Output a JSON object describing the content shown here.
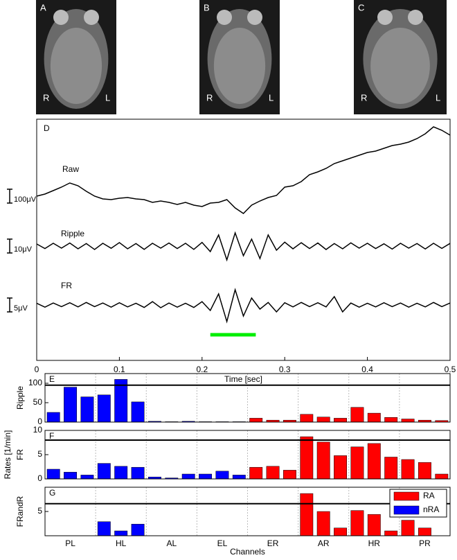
{
  "images": [
    {
      "label": "A",
      "left": "R",
      "right": "L"
    },
    {
      "label": "B",
      "left": "R",
      "right": "L"
    },
    {
      "label": "C",
      "left": "R",
      "right": "L"
    }
  ],
  "chart_data": [
    {
      "type": "traces",
      "label": "D",
      "xlabel": "Time [sec]",
      "xlim": [
        0,
        0.5
      ],
      "xticks": [
        0,
        0.1,
        0.2,
        0.3,
        0.4,
        0.5
      ],
      "highlight": {
        "range": [
          0.21,
          0.265
        ],
        "color": "#00ee00"
      },
      "x": [
        0,
        0.01,
        0.02,
        0.03,
        0.04,
        0.05,
        0.06,
        0.07,
        0.08,
        0.09,
        0.1,
        0.11,
        0.12,
        0.13,
        0.14,
        0.15,
        0.16,
        0.17,
        0.18,
        0.19,
        0.2,
        0.21,
        0.22,
        0.23,
        0.24,
        0.25,
        0.26,
        0.27,
        0.28,
        0.29,
        0.3,
        0.31,
        0.32,
        0.33,
        0.34,
        0.35,
        0.36,
        0.37,
        0.38,
        0.39,
        0.4,
        0.41,
        0.42,
        0.43,
        0.44,
        0.45,
        0.46,
        0.47,
        0.48,
        0.49,
        0.5
      ],
      "series": [
        {
          "name": "Raw",
          "color": "#000000",
          "scale_bar": {
            "value": 100,
            "label": "100μV"
          },
          "values": [
            0,
            15,
            40,
            65,
            95,
            75,
            35,
            0,
            -20,
            -25,
            -15,
            -10,
            -20,
            -25,
            -45,
            -35,
            -45,
            -60,
            -45,
            -65,
            -75,
            -50,
            -45,
            -25,
            -85,
            -125,
            -65,
            -35,
            -10,
            5,
            65,
            75,
            105,
            155,
            175,
            200,
            235,
            255,
            275,
            295,
            315,
            325,
            345,
            365,
            375,
            390,
            415,
            450,
            500,
            475,
            440
          ]
        },
        {
          "name": "Ripple",
          "color": "#000000",
          "scale_bar": {
            "value": 10,
            "label": "10μV"
          },
          "values": [
            1.5,
            -1.8,
            2,
            -1.5,
            2.2,
            -2,
            1.8,
            -2.5,
            2,
            -1.6,
            2.5,
            -2,
            1.8,
            -2.4,
            2,
            -1.5,
            2.2,
            -1.8,
            2,
            -2.4,
            2.6,
            -4,
            8,
            -10,
            9.5,
            -7,
            5,
            -9,
            8,
            -3,
            2.8,
            -2,
            2.4,
            -1.8,
            2.2,
            -2.5,
            1.8,
            -2,
            2.3,
            -1.5,
            2,
            -1.8,
            1.6,
            -2.2,
            2,
            -1.5,
            1.8,
            -2.1,
            2,
            -1.7,
            1.9
          ]
        },
        {
          "name": "FR",
          "color": "#000000",
          "scale_bar": {
            "value": 5,
            "label": "5μV"
          },
          "values": [
            0.6,
            -0.8,
            0.7,
            -0.6,
            0.8,
            -0.7,
            0.9,
            -0.6,
            0.7,
            -0.8,
            0.8,
            -0.7,
            0.6,
            -0.9,
            1.2,
            -1,
            0.7,
            -0.8,
            0.6,
            -0.9,
            1.2,
            -2,
            4,
            -6,
            5.5,
            -4,
            2.5,
            -1.5,
            0.9,
            -2.5,
            0.8,
            -0.7,
            0.9,
            -0.6,
            0.8,
            -0.7,
            3,
            -2.5,
            0.7,
            -0.8,
            0.6,
            -0.7,
            0.8,
            -0.6,
            0.7,
            -0.8,
            0.6,
            -0.7,
            0.9,
            -0.6,
            0.7
          ]
        }
      ]
    },
    {
      "type": "bar",
      "label": "E",
      "ylabel": "Ripple",
      "ylim": [
        0,
        125
      ],
      "yticks": [
        0,
        50,
        100
      ],
      "threshold": 95,
      "categories": [
        null,
        "PL",
        null,
        null,
        "HL",
        null,
        null,
        "AL",
        null,
        null,
        "EL",
        null,
        null,
        "ER",
        null,
        null,
        "AR",
        null,
        null,
        "HR",
        null,
        null,
        "PR",
        null
      ],
      "series": [
        {
          "color": "#0000ff",
          "values": [
            25,
            90,
            65,
            70,
            110,
            52,
            2,
            1,
            2,
            1,
            1,
            1,
            null,
            null,
            null,
            null,
            null,
            null,
            null,
            null,
            null,
            null,
            null,
            null
          ]
        },
        {
          "color": "#ff0000",
          "values": [
            null,
            null,
            null,
            null,
            null,
            null,
            null,
            null,
            null,
            null,
            null,
            null,
            10,
            5,
            5,
            20,
            13,
            10,
            38,
            23,
            12,
            8,
            5,
            4
          ]
        }
      ]
    },
    {
      "type": "bar",
      "label": "F",
      "ylabel": "FR",
      "group_ylabel": "Rates [1/min]",
      "ylim": [
        0,
        10
      ],
      "yticks": [
        0,
        5,
        10
      ],
      "threshold": 8,
      "series": [
        {
          "color": "#0000ff",
          "values": [
            2,
            1.4,
            0.8,
            3.2,
            2.6,
            2.4,
            0.4,
            0.2,
            1,
            1,
            1.6,
            0.8,
            null,
            null,
            null,
            null,
            null,
            null,
            null,
            null,
            null,
            null,
            null,
            null
          ]
        },
        {
          "color": "#ff0000",
          "values": [
            null,
            null,
            null,
            null,
            null,
            null,
            null,
            null,
            null,
            null,
            null,
            null,
            2.4,
            2.6,
            1.8,
            8.7,
            7.6,
            4.8,
            6.6,
            7.3,
            4.5,
            4,
            3.4,
            1
          ]
        }
      ]
    },
    {
      "type": "bar",
      "label": "G",
      "ylabel": "FRandR",
      "xlabel": "Channels",
      "ylim": [
        0,
        10
      ],
      "yticks": [
        5
      ],
      "threshold": 6.6,
      "legend": "upper right",
      "series": [
        {
          "name": "RA",
          "color": "#ff0000",
          "values": [
            null,
            null,
            null,
            null,
            null,
            null,
            null,
            null,
            null,
            null,
            null,
            null,
            0,
            0,
            0,
            8.7,
            5,
            1.6,
            5.2,
            4.4,
            1,
            3.2,
            1.6,
            0
          ]
        },
        {
          "name": "nRA",
          "color": "#0000ff",
          "values": [
            0,
            0,
            0,
            2.9,
            1,
            2.4,
            0,
            0,
            0,
            0,
            0,
            0,
            null,
            null,
            null,
            null,
            null,
            null,
            null,
            null,
            null,
            null,
            null,
            null
          ]
        }
      ]
    }
  ]
}
